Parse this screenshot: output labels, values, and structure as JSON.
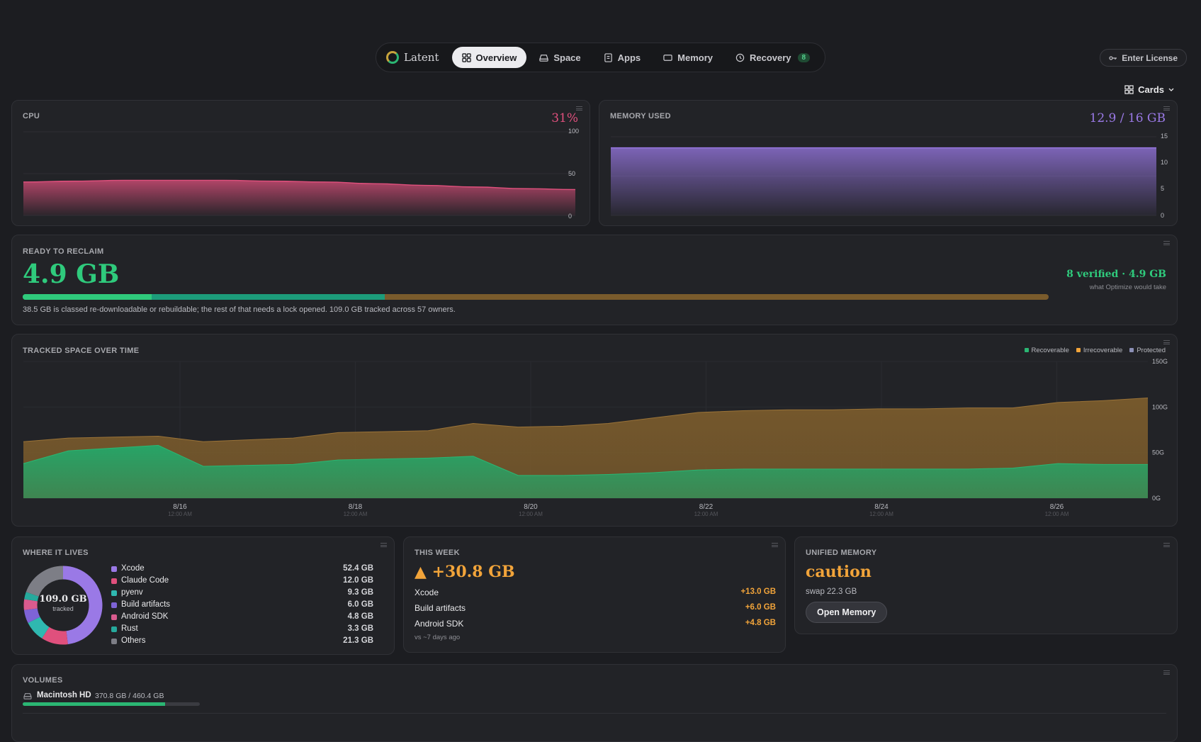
{
  "nav": {
    "brand": "Latent",
    "tabs": [
      {
        "label": "Overview",
        "icon": "grid-icon",
        "active": true
      },
      {
        "label": "Space",
        "icon": "drive-icon"
      },
      {
        "label": "Apps",
        "icon": "app-icon"
      },
      {
        "label": "Memory",
        "icon": "memory-icon"
      },
      {
        "label": "Recovery",
        "icon": "history-icon",
        "badge": "8"
      }
    ],
    "license_label": "Enter License",
    "view_toggle_label": "Cards"
  },
  "cpu": {
    "title": "CPU",
    "value": "31%",
    "color": "#e0507d",
    "ticks": [
      "100",
      "50",
      "0"
    ],
    "chart_data": {
      "type": "area",
      "ylim": [
        0,
        100
      ],
      "values": [
        40,
        41,
        42,
        42,
        42,
        41,
        40,
        38,
        36,
        34,
        32,
        31
      ]
    }
  },
  "memory": {
    "title": "MEMORY USED",
    "value": "12.9 / 16 GB",
    "color": "#9a79e6",
    "ticks": [
      "15",
      "10",
      "5",
      "0"
    ],
    "chart_data": {
      "type": "area",
      "ylim": [
        0,
        15
      ],
      "values": [
        12.9,
        12.9,
        12.9,
        12.9,
        12.9,
        12.9,
        12.9,
        12.9
      ]
    }
  },
  "reclaim": {
    "title": "READY TO RECLAIM",
    "amount": "4.9 GB",
    "verified": "8 verified · 4.9 GB",
    "verified_sub": "what Optimize would take",
    "note": "38.5 GB is classed re-downloadable or rebuildable; the rest of that needs a lock opened. 109.0 GB tracked across 57 owners.",
    "bar": {
      "verified_fraction": 0.045,
      "recoverable_fraction": 0.353,
      "colors": [
        "#2fca7c",
        "#1c9c7a",
        "#7a5b2c"
      ]
    }
  },
  "tracked": {
    "title": "TRACKED SPACE OVER TIME",
    "legend": [
      {
        "label": "Recoverable",
        "color": "#2bb673"
      },
      {
        "label": "Irrecoverable",
        "color": "#f2a43a"
      },
      {
        "label": "Protected",
        "color": "#8b8fb5"
      }
    ],
    "y_ticks": [
      "150G",
      "100G",
      "50G",
      "0G"
    ],
    "x_ticks": [
      {
        "date": "8/16",
        "time": "12:00 AM"
      },
      {
        "date": "8/18",
        "time": "12:00 AM"
      },
      {
        "date": "8/20",
        "time": "12:00 AM"
      },
      {
        "date": "8/22",
        "time": "12:00 AM"
      },
      {
        "date": "8/24",
        "time": "12:00 AM"
      },
      {
        "date": "8/26",
        "time": "12:00 AM"
      }
    ],
    "chart_data": {
      "type": "area",
      "ylim": [
        0,
        150
      ],
      "x": [
        "8/15",
        "8/15",
        "8/15",
        "8/16",
        "8/16",
        "8/17",
        "8/17",
        "8/18",
        "8/18",
        "8/19",
        "8/19",
        "8/20",
        "8/20",
        "8/21",
        "8/21",
        "8/22",
        "8/22",
        "8/23",
        "8/23",
        "8/24",
        "8/24",
        "8/25",
        "8/25",
        "8/26",
        "8/26",
        "8/27"
      ],
      "series": [
        {
          "name": "Recoverable",
          "values": [
            38,
            52,
            55,
            58,
            35,
            36,
            37,
            42,
            43,
            44,
            46,
            25,
            25,
            26,
            28,
            31,
            32,
            32,
            32,
            32,
            32,
            32,
            33,
            38,
            37,
            37
          ]
        },
        {
          "name": "Irrecoverable",
          "values": [
            24,
            14,
            12,
            10,
            27,
            28,
            29,
            30,
            30,
            30,
            36,
            53,
            54,
            56,
            60,
            63,
            64,
            65,
            65,
            66,
            66,
            67,
            66,
            67,
            70,
            73
          ]
        }
      ]
    }
  },
  "lives": {
    "title": "WHERE IT LIVES",
    "total": "109.0 GB",
    "total_sub": "tracked",
    "items": [
      {
        "name": "Xcode",
        "value": "52.4 GB",
        "gb": 52.4,
        "color": "#9a79e6"
      },
      {
        "name": "Claude Code",
        "value": "12.0 GB",
        "gb": 12.0,
        "color": "#e0507d"
      },
      {
        "name": "pyenv",
        "value": "9.3 GB",
        "gb": 9.3,
        "color": "#2fb8b0"
      },
      {
        "name": "Build artifacts",
        "value": "6.0 GB",
        "gb": 6.0,
        "color": "#7e63d6"
      },
      {
        "name": "Android SDK",
        "value": "4.8 GB",
        "gb": 4.8,
        "color": "#d95b8e"
      },
      {
        "name": "Rust",
        "value": "3.3 GB",
        "gb": 3.3,
        "color": "#26a99c"
      },
      {
        "name": "Others",
        "value": "21.3 GB",
        "gb": 21.3,
        "color": "#7d7e86"
      }
    ]
  },
  "week": {
    "title": "THIS WEEK",
    "total": "▲ +30.8 GB",
    "items": [
      {
        "name": "Xcode",
        "value": "+13.0 GB"
      },
      {
        "name": "Build artifacts",
        "value": "+6.0 GB"
      },
      {
        "name": "Android SDK",
        "value": "+4.8 GB"
      }
    ],
    "footer": "vs ~7 days ago"
  },
  "unified": {
    "title": "UNIFIED MEMORY",
    "status": "caution",
    "swap": "swap 22.3 GB",
    "button": "Open Memory"
  },
  "volumes": {
    "title": "VOLUMES",
    "name": "Macintosh HD",
    "usage": "370.8 GB / 460.4 GB",
    "used_fraction": 0.805
  }
}
